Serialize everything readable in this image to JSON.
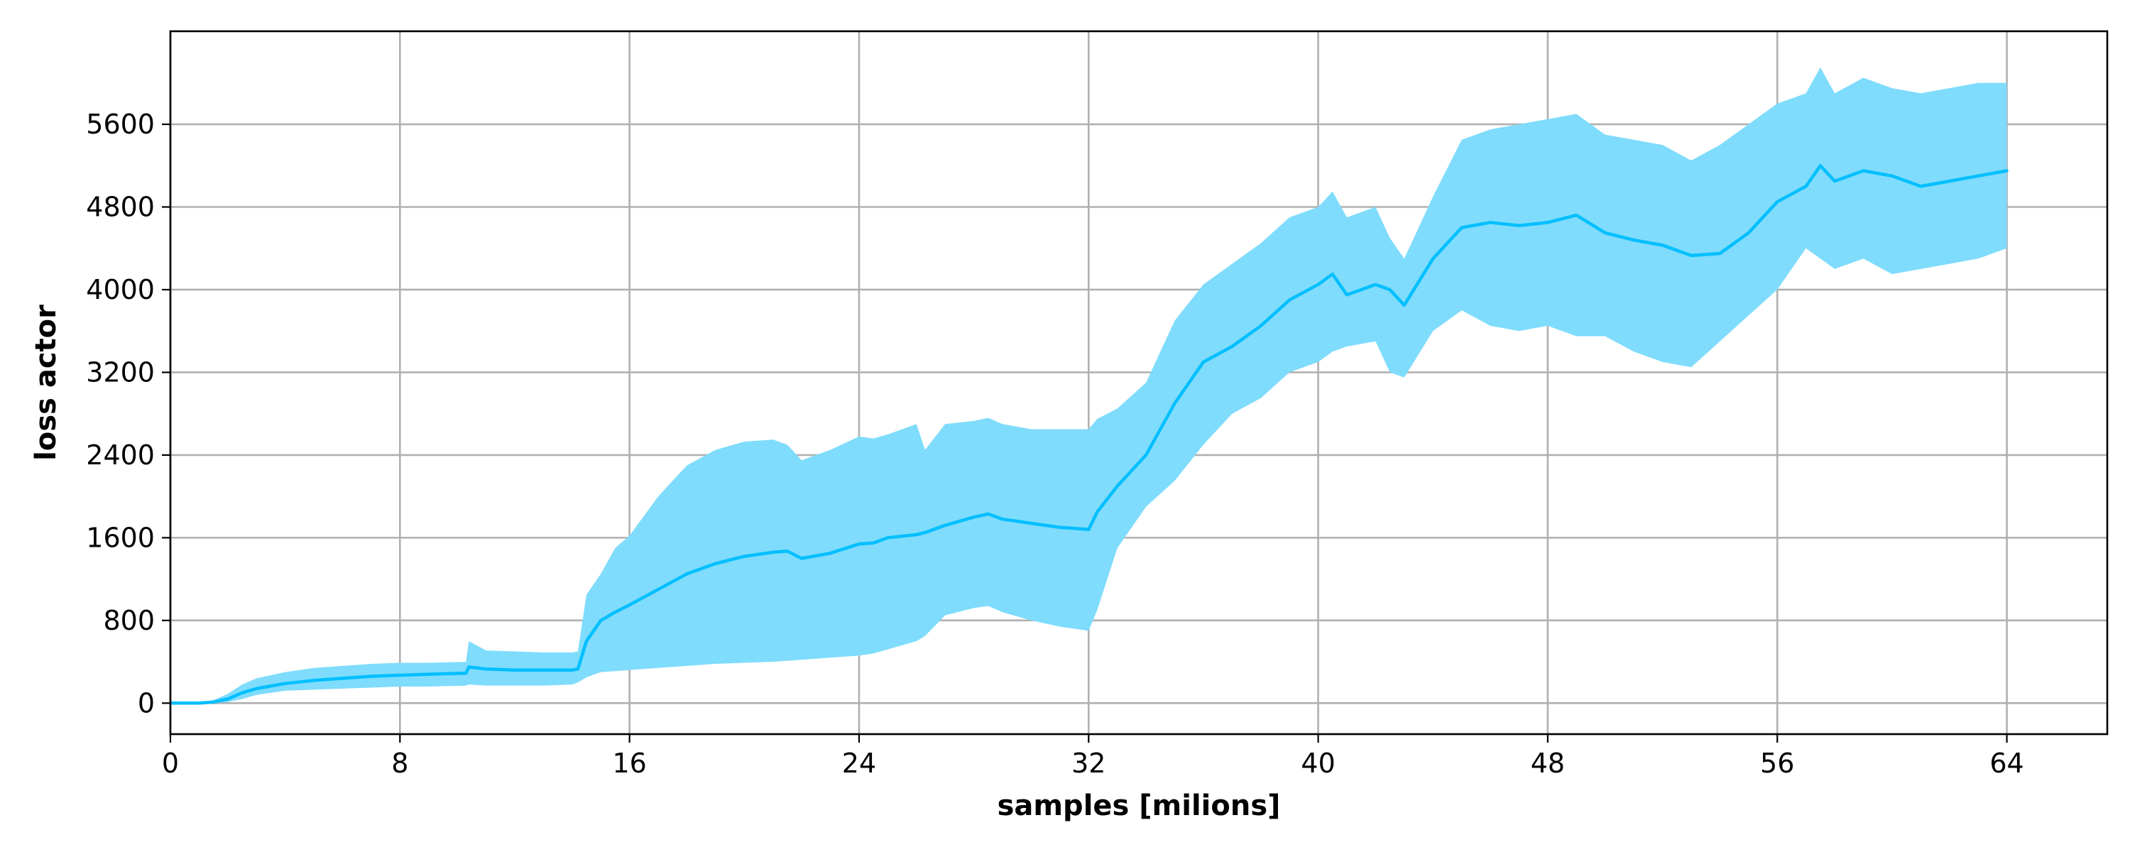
{
  "chart_data": {
    "type": "line",
    "title": "",
    "xlabel": "samples [milions]",
    "ylabel": "loss actor",
    "xlim": [
      0,
      67.5
    ],
    "ylim": [
      -300,
      6500
    ],
    "x_ticks": [
      0,
      8,
      16,
      24,
      32,
      40,
      48,
      56,
      64
    ],
    "y_ticks": [
      0,
      800,
      1600,
      2400,
      3200,
      4000,
      4800,
      5600
    ],
    "grid": true,
    "colors": {
      "line": "#00bfff",
      "band": "#7fdcfc"
    },
    "series": [
      {
        "x": [
          0,
          1,
          1.5,
          2,
          2.5,
          3,
          4,
          5,
          6,
          7,
          8,
          9,
          10.3,
          10.4,
          11,
          12,
          13,
          14,
          14.2,
          14.5,
          15,
          15.5,
          16,
          17,
          18,
          19,
          20,
          21,
          21.5,
          22,
          23,
          24,
          24.5,
          25,
          26,
          26.3,
          27,
          28,
          28.5,
          29,
          30,
          31,
          32,
          32.3,
          33,
          34,
          35,
          36,
          37,
          38,
          39,
          40,
          40.5,
          41,
          42,
          42.5,
          43,
          44,
          45,
          46,
          47,
          48,
          49,
          50,
          51,
          52,
          53,
          54,
          55,
          56,
          57,
          57.5,
          58,
          59,
          60,
          61,
          62,
          63,
          64
        ],
        "y": [
          0,
          0,
          10,
          40,
          100,
          140,
          190,
          220,
          240,
          260,
          270,
          280,
          290,
          350,
          330,
          320,
          320,
          320,
          330,
          600,
          800,
          880,
          950,
          1100,
          1250,
          1350,
          1420,
          1460,
          1470,
          1400,
          1450,
          1540,
          1550,
          1600,
          1630,
          1650,
          1720,
          1800,
          1830,
          1780,
          1740,
          1700,
          1680,
          1850,
          2100,
          2400,
          2900,
          3300,
          3450,
          3650,
          3900,
          4050,
          4150,
          3950,
          4050,
          4000,
          3850,
          4300,
          4600,
          4650,
          4620,
          4650,
          4720,
          4550,
          4480,
          4430,
          4330,
          4350,
          4550,
          4850,
          5000,
          5200,
          5050,
          5150,
          5100,
          5000,
          5050,
          5100,
          5150
        ],
        "y_upper": [
          0,
          0,
          30,
          90,
          180,
          240,
          300,
          340,
          360,
          380,
          390,
          390,
          400,
          600,
          510,
          500,
          490,
          490,
          500,
          1050,
          1250,
          1500,
          1620,
          2000,
          2300,
          2450,
          2530,
          2550,
          2500,
          2350,
          2450,
          2580,
          2560,
          2600,
          2700,
          2450,
          2700,
          2730,
          2760,
          2700,
          2650,
          2650,
          2650,
          2750,
          2850,
          3100,
          3700,
          4050,
          4250,
          4450,
          4700,
          4800,
          4950,
          4700,
          4800,
          4500,
          4300,
          4900,
          5450,
          5550,
          5600,
          5650,
          5700,
          5500,
          5450,
          5400,
          5250,
          5400,
          5600,
          5800,
          5900,
          6150,
          5900,
          6050,
          5950,
          5900,
          5950,
          6000,
          6000
        ],
        "y_lower": [
          0,
          0,
          0,
          10,
          40,
          80,
          120,
          130,
          140,
          150,
          160,
          160,
          170,
          180,
          170,
          170,
          170,
          180,
          200,
          250,
          300,
          310,
          320,
          340,
          360,
          380,
          390,
          400,
          410,
          420,
          440,
          460,
          480,
          520,
          600,
          650,
          850,
          920,
          940,
          880,
          800,
          740,
          700,
          900,
          1500,
          1900,
          2150,
          2500,
          2800,
          2950,
          3200,
          3300,
          3400,
          3450,
          3500,
          3200,
          3150,
          3600,
          3800,
          3650,
          3600,
          3650,
          3550,
          3550,
          3400,
          3300,
          3250,
          3500,
          3750,
          4000,
          4400,
          4300,
          4200,
          4300,
          4150,
          4200,
          4250,
          4300,
          4400
        ]
      }
    ]
  }
}
